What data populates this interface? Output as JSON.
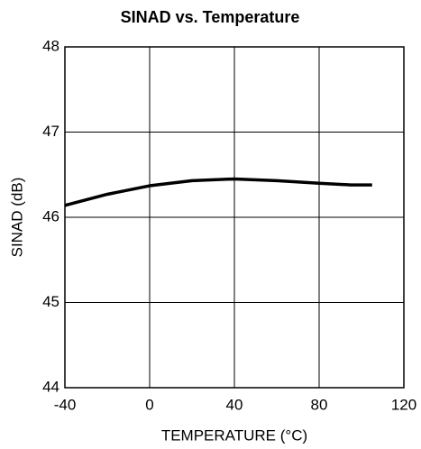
{
  "chart_data": {
    "type": "line",
    "title": "SINAD vs. Temperature",
    "x_label": "TEMPERATURE (°C)",
    "y_label": "SINAD (dB)",
    "x": [
      -40,
      -20,
      0,
      20,
      40,
      60,
      80,
      95,
      105
    ],
    "series": [
      {
        "name": "SINAD",
        "color": "#000000",
        "values": [
          46.14,
          46.27,
          46.37,
          46.43,
          46.45,
          46.43,
          46.4,
          46.38,
          46.38
        ]
      }
    ],
    "xlim": [
      -40,
      120
    ],
    "xticks": [
      -40,
      0,
      40,
      80,
      120
    ],
    "ylim": [
      44,
      48
    ],
    "yticks": [
      44,
      45,
      46,
      47,
      48
    ],
    "grid": true
  }
}
